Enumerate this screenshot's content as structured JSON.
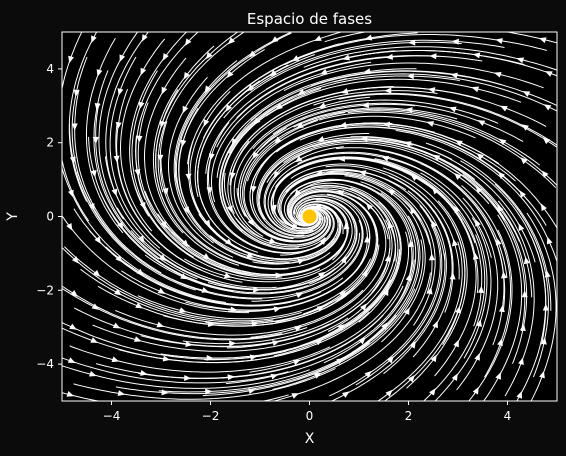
{
  "chart_data": {
    "type": "streamplot",
    "title": "Espacio de fases",
    "xlabel": "X",
    "ylabel": "Y",
    "xlim": [
      -5,
      5
    ],
    "ylim": [
      -5,
      5
    ],
    "x_ticks": [
      -4,
      -2,
      0,
      2,
      4
    ],
    "y_ticks": [
      -4,
      -2,
      0,
      2,
      4
    ],
    "x_tick_labels": [
      "−4",
      "−2",
      "0",
      "2",
      "4"
    ],
    "y_tick_labels": [
      "−4",
      "−2",
      "0",
      "2",
      "4"
    ],
    "grid": false,
    "fixed_point": {
      "x": 0,
      "y": 0
    },
    "colors": {
      "background": "#0b0b0c",
      "text": "#ffffff",
      "streamlines": "#ffffff",
      "fixed_point": "#ffc400"
    }
  }
}
